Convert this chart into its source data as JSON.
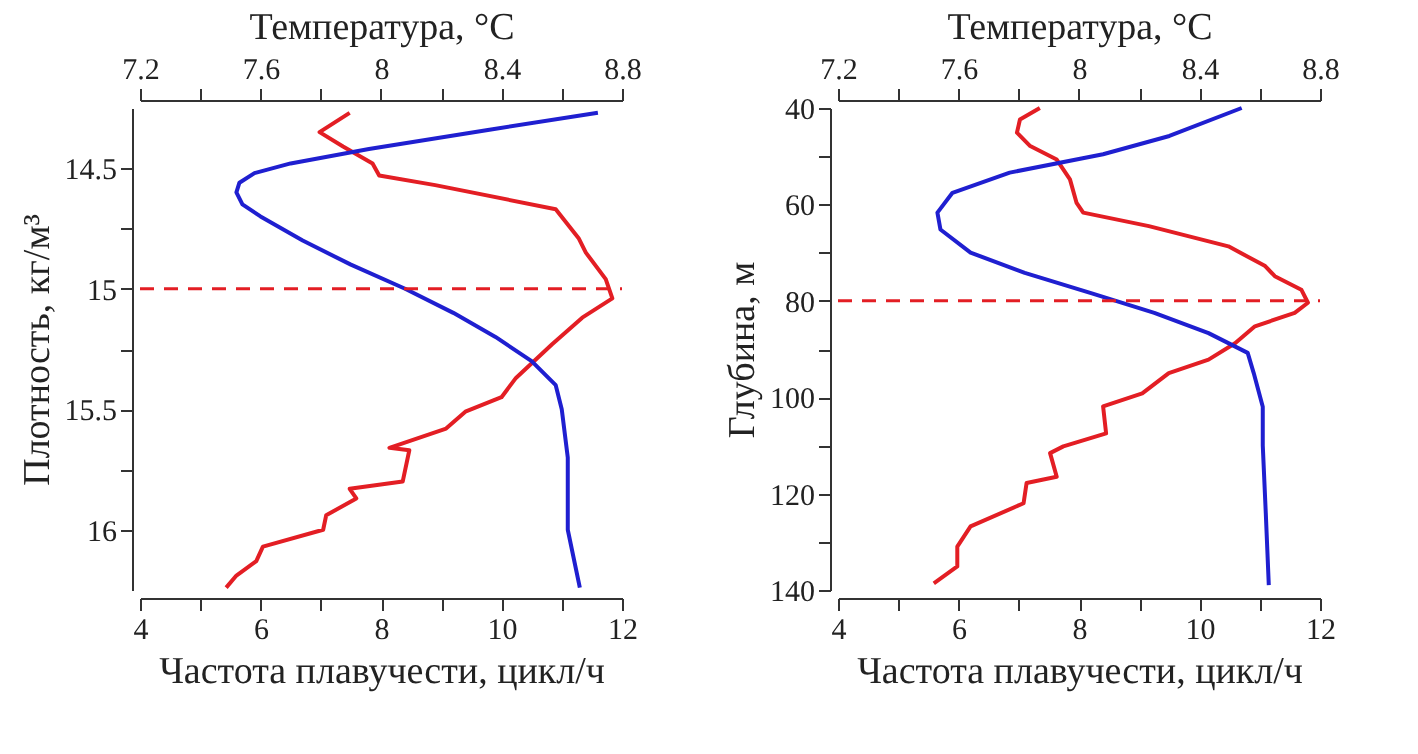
{
  "chart_data": [
    {
      "type": "line",
      "xlabel": "Частота плавучести, цикл/ч",
      "x2label": "Температура, °C",
      "ylabel": "Плотность, кг/м³",
      "xlim": [
        4,
        12
      ],
      "xticks": [
        4,
        {
          "value": 5,
          "label": null
        },
        6,
        {
          "value": 7,
          "label": null
        },
        8,
        {
          "value": 9,
          "label": null
        },
        10,
        {
          "value": 11,
          "label": null
        },
        12
      ],
      "x2lim": [
        7.2,
        8.8
      ],
      "x2ticks": [
        7.2,
        {
          "value": 7.4,
          "label": null
        },
        7.6,
        {
          "value": 7.8,
          "label": null
        },
        8,
        {
          "value": 8.2,
          "label": null
        },
        8.4,
        {
          "value": 8.6,
          "label": null
        },
        8.8
      ],
      "ylim": [
        16.25,
        14.25
      ],
      "yticks": [
        14.5,
        {
          "value": 14.75,
          "label": null
        },
        15,
        {
          "value": 15.25,
          "label": null
        },
        15.5,
        {
          "value": 15.75,
          "label": null
        },
        16
      ],
      "grid": false,
      "series": [
        {
          "color": "#e31e24",
          "x": [
            7.48,
            6.98,
            7.37,
            7.86,
            7.97,
            8.9,
            10.9,
            11.28,
            11.4,
            11.73,
            11.84,
            11.34,
            10.84,
            10.24,
            10.0,
            9.4,
            9.08,
            8.14,
            8.47,
            8.36,
            7.48,
            7.59,
            7.09,
            7.04,
            6.04,
            5.93,
            5.6,
            5.43
          ],
          "values": [
            14.27,
            14.35,
            14.41,
            14.48,
            14.53,
            14.57,
            14.67,
            14.79,
            14.85,
            14.96,
            15.04,
            15.12,
            15.23,
            15.37,
            15.45,
            15.51,
            15.58,
            15.66,
            15.67,
            15.8,
            15.83,
            15.87,
            15.94,
            16.0,
            16.07,
            16.13,
            16.19,
            16.24
          ]
        },
        {
          "color": "#1f1fd0",
          "axis": "x2",
          "x": [
            8.72,
            8.36,
            7.96,
            7.7,
            7.58,
            7.53,
            7.52,
            7.54,
            7.6,
            7.74,
            7.9,
            8.08,
            8.24,
            8.38,
            8.5,
            8.58,
            8.6,
            8.62,
            8.62,
            8.66
          ],
          "values": [
            14.27,
            14.34,
            14.42,
            14.48,
            14.52,
            14.56,
            14.6,
            14.65,
            14.7,
            14.8,
            14.9,
            15.0,
            15.1,
            15.2,
            15.3,
            15.4,
            15.5,
            15.7,
            16.0,
            16.24
          ]
        }
      ],
      "ref_lines": [
        {
          "axis": "y",
          "value": 15,
          "color": "#e31e24",
          "line_style": "dashed"
        }
      ]
    },
    {
      "type": "line",
      "xlabel": "Частота плавучести, цикл/ч",
      "x2label": "Температура, °C",
      "ylabel": "Глубина, м",
      "xlim": [
        4,
        12
      ],
      "xticks": [
        4,
        {
          "value": 5,
          "label": null
        },
        6,
        {
          "value": 7,
          "label": null
        },
        8,
        {
          "value": 9,
          "label": null
        },
        10,
        {
          "value": 11,
          "label": null
        },
        12
      ],
      "x2lim": [
        7.2,
        8.8
      ],
      "x2ticks": [
        7.2,
        {
          "value": 7.4,
          "label": null
        },
        7.6,
        {
          "value": 7.8,
          "label": null
        },
        8,
        {
          "value": 8.2,
          "label": null
        },
        8.4,
        {
          "value": 8.6,
          "label": null
        },
        8.8
      ],
      "ylim": [
        140,
        40
      ],
      "yticks": [
        40,
        {
          "value": 50,
          "label": null
        },
        60,
        {
          "value": 70,
          "label": null
        },
        80,
        {
          "value": 90,
          "label": null
        },
        100,
        {
          "value": 110,
          "label": null
        },
        120,
        {
          "value": 130,
          "label": null
        },
        140
      ],
      "grid": false,
      "series": [
        {
          "color": "#e31e24",
          "x": [
            7.35,
            7.02,
            6.97,
            7.19,
            7.63,
            7.85,
            7.96,
            8.07,
            9.16,
            10.48,
            11.09,
            11.25,
            11.69,
            11.8,
            11.58,
            10.92,
            10.59,
            10.15,
            9.49,
            9.05,
            8.4,
            8.45,
            7.74,
            7.52,
            7.63,
            7.13,
            7.08,
            6.2,
            5.98,
            5.98,
            5.59
          ],
          "values": [
            40,
            42.4,
            45.1,
            47.9,
            50.7,
            54.8,
            59.7,
            61.7,
            64.5,
            68.7,
            72.8,
            74.9,
            77.7,
            80.4,
            82.5,
            85.3,
            88.8,
            92.2,
            95,
            99.2,
            101.9,
            107.5,
            110.2,
            111.6,
            116.5,
            117.8,
            122,
            126.8,
            131,
            135.1,
            138.6
          ]
        },
        {
          "color": "#1f1fd0",
          "axis": "x2",
          "x": [
            8.54,
            8.3,
            8.08,
            7.77,
            7.58,
            7.53,
            7.54,
            7.64,
            7.82,
            8.04,
            8.25,
            8.43,
            8.56,
            8.58,
            8.61,
            8.61,
            8.62,
            8.63
          ],
          "values": [
            40,
            45.8,
            49.6,
            53.4,
            57.6,
            61.7,
            65.2,
            70,
            74.2,
            78.4,
            82.5,
            86.7,
            90.8,
            95,
            102,
            110,
            124,
            139
          ]
        }
      ],
      "ref_lines": [
        {
          "axis": "y",
          "value": 80,
          "color": "#e31e24",
          "line_style": "dashed"
        }
      ]
    }
  ]
}
